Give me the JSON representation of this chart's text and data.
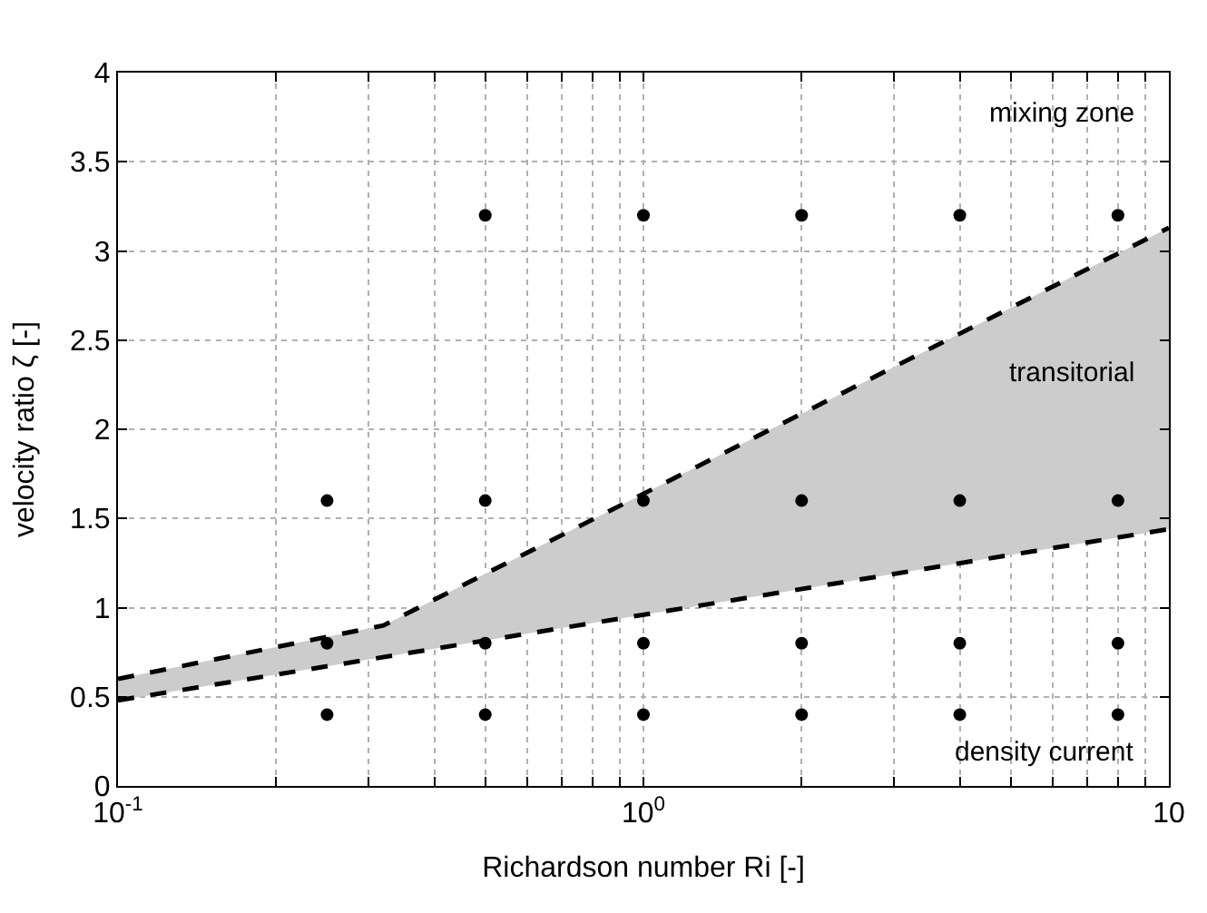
{
  "chart_data": {
    "type": "scatter",
    "xlabel": "Richardson number Ri [-]",
    "ylabel": "velocity ratio ζ [-]",
    "log": "x",
    "grid": true,
    "xlim": [
      0.1,
      10
    ],
    "xticks": [
      {
        "value": 0.1,
        "label": "10$^{-1}$"
      },
      {
        "value": 0.2,
        "label": null
      },
      {
        "value": 0.3,
        "label": null
      },
      {
        "value": 0.4,
        "label": null
      },
      {
        "value": 0.5,
        "label": null
      },
      {
        "value": 0.6,
        "label": null
      },
      {
        "value": 0.7,
        "label": null
      },
      {
        "value": 0.8,
        "label": null
      },
      {
        "value": 0.9,
        "label": null
      },
      {
        "value": 1,
        "label": "10$^{0}$"
      },
      {
        "value": 2,
        "label": null
      },
      {
        "value": 3,
        "label": null
      },
      {
        "value": 4,
        "label": null
      },
      {
        "value": 5,
        "label": null
      },
      {
        "value": 6,
        "label": null
      },
      {
        "value": 7,
        "label": null
      },
      {
        "value": 8,
        "label": null
      },
      {
        "value": 9,
        "label": null
      },
      10
    ],
    "ylim": [
      0,
      4
    ],
    "yticks": [
      0,
      0.5,
      1,
      1.5,
      2,
      2.5,
      3,
      3.5,
      4
    ],
    "series": [
      {
        "type": "line",
        "line_style": "dashed",
        "marker": "none",
        "color": "#000000",
        "x": [
          0.1,
          10
        ],
        "values": [
          0.48,
          1.44
        ]
      },
      {
        "type": "area",
        "color": "#cccccc",
        "line_style": "dashed",
        "x": [
          0.1,
          0.32,
          10
        ],
        "values": [
          0.6,
          0.9,
          3.13
        ]
      },
      {
        "marker": "circle",
        "color": "#000000",
        "x": [
          0.25,
          0.5,
          1,
          2,
          4,
          8,
          0.25,
          0.5,
          1,
          2,
          4,
          8,
          0.25,
          0.5,
          1,
          2,
          4,
          8,
          0.5,
          1,
          2,
          4,
          8
        ],
        "values": [
          0.4,
          0.4,
          0.4,
          0.4,
          0.4,
          0.4,
          0.8,
          0.8,
          0.8,
          0.8,
          0.8,
          0.8,
          1.6,
          1.6,
          1.6,
          1.6,
          1.6,
          1.6,
          3.2,
          3.2,
          3.2,
          3.2,
          3.2
        ]
      }
    ],
    "annotations": [
      "mixing zone",
      "transitorial",
      "density current"
    ]
  }
}
